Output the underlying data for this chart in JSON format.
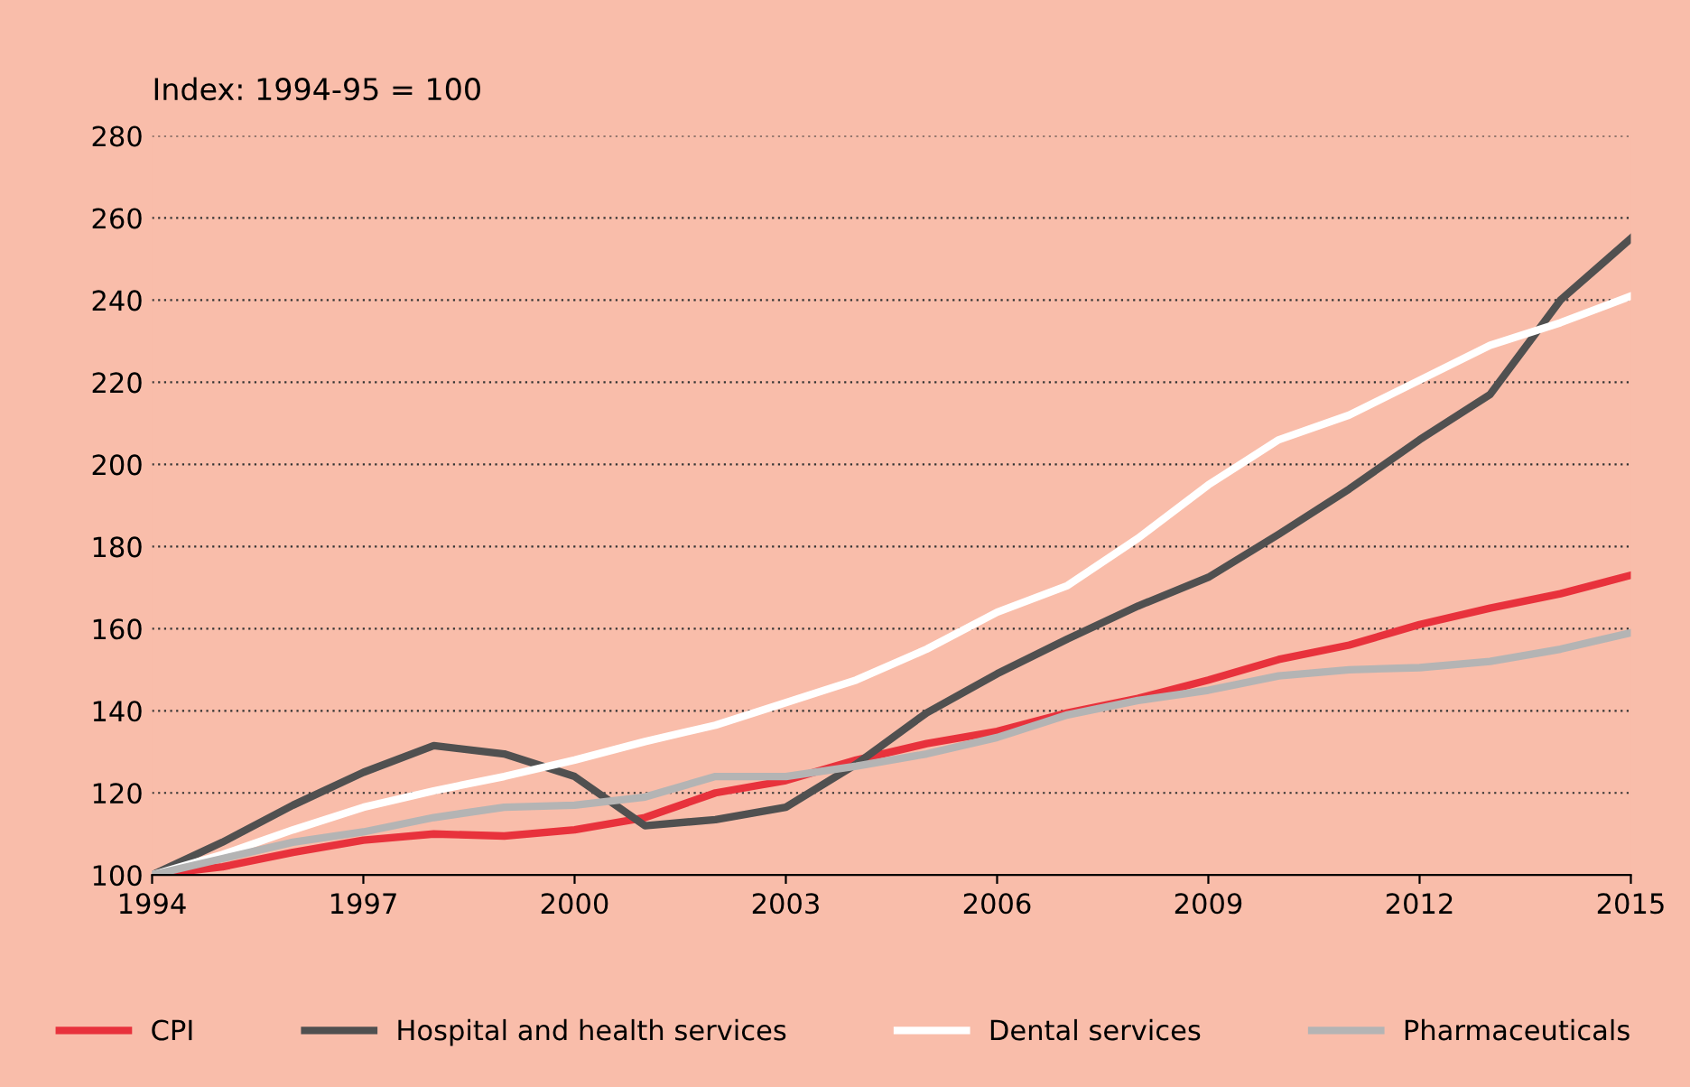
{
  "chart_data": {
    "type": "line",
    "ylabel": "Index: 1994-95 = 100",
    "x": [
      1994,
      1995,
      1996,
      1997,
      1998,
      1999,
      2000,
      2001,
      2002,
      2003,
      2004,
      2005,
      2006,
      2007,
      2008,
      2009,
      2010,
      2011,
      2012,
      2013,
      2014,
      2015
    ],
    "series": [
      {
        "name": "CPI",
        "color": "#e8323c",
        "values": [
          100,
          102,
          105.5,
          108.5,
          110,
          109.5,
          111,
          114,
          120,
          123,
          128,
          132,
          135,
          139.5,
          143,
          147.5,
          152.5,
          156,
          161,
          165,
          168.5,
          173
        ]
      },
      {
        "name": "Hospital and health services",
        "color": "#505050",
        "values": [
          100,
          108,
          117,
          125,
          131.5,
          129.5,
          124,
          112,
          113.5,
          116.5,
          127,
          139.5,
          149,
          157.5,
          165.5,
          172.5,
          183,
          194,
          206,
          217,
          240,
          255
        ]
      },
      {
        "name": "Dental services",
        "color": "#ffffff",
        "values": [
          100,
          105,
          111,
          116.5,
          120.5,
          124,
          128,
          132.5,
          136.5,
          142,
          147.5,
          155,
          164,
          170.5,
          182,
          195,
          206,
          212,
          220.5,
          229,
          234.5,
          241
        ]
      },
      {
        "name": "Pharmaceuticals",
        "color": "#b4b4b4",
        "values": [
          100,
          104,
          108,
          110.5,
          114,
          116.5,
          117,
          119,
          124,
          124,
          126.5,
          129.5,
          133.5,
          139,
          142.5,
          145,
          148.5,
          150,
          150.5,
          152,
          155,
          159
        ]
      }
    ],
    "xlim": [
      1994,
      2015
    ],
    "xticks": [
      1994,
      1997,
      2000,
      2003,
      2006,
      2009,
      2012,
      2015
    ],
    "ylim": [
      100,
      280
    ],
    "yticks": [
      100,
      120,
      140,
      160,
      180,
      200,
      220,
      240,
      260,
      280
    ],
    "grid": "y",
    "legend": "bottom"
  }
}
